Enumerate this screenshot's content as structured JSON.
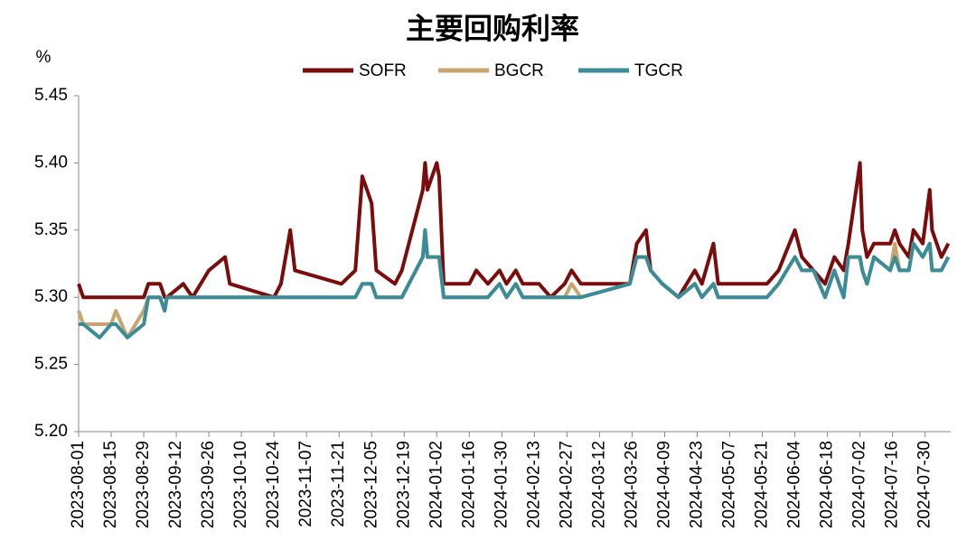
{
  "chart_data": {
    "type": "line",
    "title": "主要回购利率",
    "y_unit": "%",
    "x": [
      "2023-08-01",
      "2023-08-03",
      "2023-08-10",
      "2023-08-15",
      "2023-08-17",
      "2023-08-22",
      "2023-08-29",
      "2023-08-31",
      "2023-09-05",
      "2023-09-07",
      "2023-09-08",
      "2023-09-15",
      "2023-09-19",
      "2023-09-26",
      "2023-10-03",
      "2023-10-05",
      "2023-10-24",
      "2023-10-27",
      "2023-10-31",
      "2023-11-02",
      "2023-11-22",
      "2023-11-28",
      "2023-12-01",
      "2023-12-05",
      "2023-12-07",
      "2023-12-15",
      "2023-12-18",
      "2023-12-27",
      "2023-12-28",
      "2023-12-29",
      "2024-01-02",
      "2024-01-03",
      "2024-01-05",
      "2024-01-16",
      "2024-01-19",
      "2024-01-24",
      "2024-01-29",
      "2024-02-01",
      "2024-02-05",
      "2024-02-08",
      "2024-02-15",
      "2024-02-20",
      "2024-02-26",
      "2024-02-29",
      "2024-03-04",
      "2024-03-25",
      "2024-03-28",
      "2024-04-01",
      "2024-04-03",
      "2024-04-08",
      "2024-04-15",
      "2024-04-22",
      "2024-04-25",
      "2024-04-30",
      "2024-05-02",
      "2024-05-23",
      "2024-05-28",
      "2024-06-04",
      "2024-06-07",
      "2024-06-12",
      "2024-06-17",
      "2024-06-21",
      "2024-06-25",
      "2024-06-27",
      "2024-07-02",
      "2024-07-03",
      "2024-07-05",
      "2024-07-08",
      "2024-07-15",
      "2024-07-17",
      "2024-07-19",
      "2024-07-23",
      "2024-07-25",
      "2024-07-29",
      "2024-08-01",
      "2024-08-02",
      "2024-08-06",
      "2024-08-09"
    ],
    "series": [
      {
        "name": "SOFR",
        "color": "#7a0c0c",
        "values": [
          5.31,
          5.3,
          5.3,
          5.3,
          5.3,
          5.3,
          5.3,
          5.31,
          5.31,
          5.3,
          5.3,
          5.31,
          5.3,
          5.32,
          5.33,
          5.31,
          5.3,
          5.31,
          5.35,
          5.32,
          5.31,
          5.32,
          5.39,
          5.37,
          5.32,
          5.31,
          5.32,
          5.38,
          5.4,
          5.38,
          5.4,
          5.39,
          5.31,
          5.31,
          5.32,
          5.31,
          5.32,
          5.31,
          5.32,
          5.31,
          5.31,
          5.3,
          5.31,
          5.32,
          5.31,
          5.31,
          5.34,
          5.35,
          5.32,
          5.31,
          5.3,
          5.32,
          5.31,
          5.34,
          5.31,
          5.31,
          5.32,
          5.35,
          5.33,
          5.32,
          5.31,
          5.33,
          5.32,
          5.34,
          5.4,
          5.35,
          5.33,
          5.34,
          5.34,
          5.35,
          5.34,
          5.33,
          5.35,
          5.34,
          5.38,
          5.35,
          5.33,
          5.34
        ]
      },
      {
        "name": "BGCR",
        "color": "#c9a46c",
        "values": [
          5.29,
          5.28,
          5.28,
          5.28,
          5.29,
          5.27,
          5.29,
          5.3,
          5.3,
          5.29,
          5.3,
          5.3,
          5.3,
          5.3,
          5.3,
          5.3,
          5.3,
          5.3,
          5.3,
          5.3,
          5.3,
          5.3,
          5.31,
          5.31,
          5.3,
          5.3,
          5.3,
          5.33,
          5.35,
          5.33,
          5.33,
          5.33,
          5.3,
          5.3,
          5.3,
          5.3,
          5.31,
          5.3,
          5.31,
          5.3,
          5.3,
          5.3,
          5.3,
          5.31,
          5.3,
          5.31,
          5.33,
          5.33,
          5.32,
          5.31,
          5.3,
          5.31,
          5.3,
          5.31,
          5.3,
          5.3,
          5.31,
          5.33,
          5.32,
          5.32,
          5.3,
          5.32,
          5.3,
          5.33,
          5.33,
          5.32,
          5.31,
          5.33,
          5.32,
          5.34,
          5.32,
          5.32,
          5.34,
          5.33,
          5.34,
          5.32,
          5.32,
          5.33
        ]
      },
      {
        "name": "TGCR",
        "color": "#3b8c99",
        "values": [
          5.28,
          5.28,
          5.27,
          5.28,
          5.28,
          5.27,
          5.28,
          5.3,
          5.3,
          5.29,
          5.3,
          5.3,
          5.3,
          5.3,
          5.3,
          5.3,
          5.3,
          5.3,
          5.3,
          5.3,
          5.3,
          5.3,
          5.31,
          5.31,
          5.3,
          5.3,
          5.3,
          5.33,
          5.35,
          5.33,
          5.33,
          5.33,
          5.3,
          5.3,
          5.3,
          5.3,
          5.31,
          5.3,
          5.31,
          5.3,
          5.3,
          5.3,
          5.3,
          5.3,
          5.3,
          5.31,
          5.33,
          5.33,
          5.32,
          5.31,
          5.3,
          5.31,
          5.3,
          5.31,
          5.3,
          5.3,
          5.31,
          5.33,
          5.32,
          5.32,
          5.3,
          5.32,
          5.3,
          5.33,
          5.33,
          5.32,
          5.31,
          5.33,
          5.32,
          5.33,
          5.32,
          5.32,
          5.34,
          5.33,
          5.34,
          5.32,
          5.32,
          5.33
        ]
      }
    ],
    "xlim": [
      "2023-08-01",
      "2024-08-10"
    ],
    "xticks": [
      "2023-08-01",
      "2023-08-15",
      "2023-08-29",
      "2023-09-12",
      "2023-09-26",
      "2023-10-10",
      "2023-10-24",
      "2023-11-07",
      "2023-11-21",
      "2023-12-05",
      "2023-12-19",
      "2024-01-02",
      "2024-01-16",
      "2024-01-30",
      "2024-02-13",
      "2024-02-27",
      "2024-03-12",
      "2024-03-26",
      "2024-04-09",
      "2024-04-23",
      "2024-05-07",
      "2024-05-21",
      "2024-06-04",
      "2024-06-18",
      "2024-07-02",
      "2024-07-16",
      "2024-07-30"
    ],
    "ylim": [
      5.2,
      5.45
    ],
    "yticks": [
      {
        "value": 5.2,
        "label": "5.20"
      },
      5.25,
      {
        "value": 5.3,
        "label": "5.30"
      },
      5.35,
      {
        "value": 5.4,
        "label": "5.40"
      },
      5.45
    ],
    "legend": "top",
    "grid": false
  }
}
